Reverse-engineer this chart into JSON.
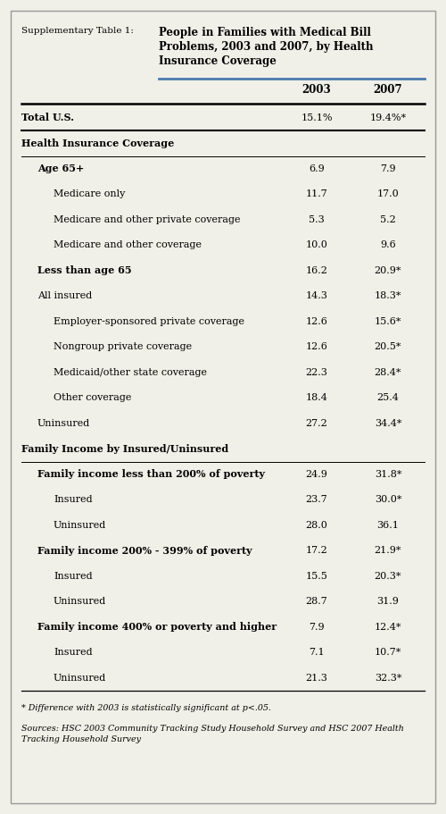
{
  "title_label": "Supplementary Table 1:",
  "title_main": "People in Families with Medical Bill\nProblems, 2003 and 2007, by Health\nInsurance Coverage",
  "col_headers": [
    "2003",
    "2007"
  ],
  "rows": [
    {
      "label": "Total U.S.",
      "val2003": "15.1%",
      "val2007": "19.4%*",
      "indent": 0,
      "bold": true,
      "is_section_header": false
    },
    {
      "label": "Health Insurance Coverage",
      "val2003": "",
      "val2007": "",
      "indent": 0,
      "bold": true,
      "is_section_header": true
    },
    {
      "label": "Age 65+",
      "val2003": "6.9",
      "val2007": "7.9",
      "indent": 1,
      "bold": true,
      "is_section_header": false
    },
    {
      "label": "Medicare only",
      "val2003": "11.7",
      "val2007": "17.0",
      "indent": 2,
      "bold": false,
      "is_section_header": false
    },
    {
      "label": "Medicare and other private coverage",
      "val2003": "5.3",
      "val2007": "5.2",
      "indent": 2,
      "bold": false,
      "is_section_header": false
    },
    {
      "label": "Medicare and other coverage",
      "val2003": "10.0",
      "val2007": "9.6",
      "indent": 2,
      "bold": false,
      "is_section_header": false
    },
    {
      "label": "Less than age 65",
      "val2003": "16.2",
      "val2007": "20.9*",
      "indent": 1,
      "bold": true,
      "is_section_header": false
    },
    {
      "label": "All insured",
      "val2003": "14.3",
      "val2007": "18.3*",
      "indent": 1,
      "bold": false,
      "is_section_header": false
    },
    {
      "label": "Employer-sponsored private coverage",
      "val2003": "12.6",
      "val2007": "15.6*",
      "indent": 2,
      "bold": false,
      "is_section_header": false
    },
    {
      "label": "Nongroup private coverage",
      "val2003": "12.6",
      "val2007": "20.5*",
      "indent": 2,
      "bold": false,
      "is_section_header": false
    },
    {
      "label": "Medicaid/other state coverage",
      "val2003": "22.3",
      "val2007": "28.4*",
      "indent": 2,
      "bold": false,
      "is_section_header": false
    },
    {
      "label": "Other coverage",
      "val2003": "18.4",
      "val2007": "25.4",
      "indent": 2,
      "bold": false,
      "is_section_header": false
    },
    {
      "label": "Uninsured",
      "val2003": "27.2",
      "val2007": "34.4*",
      "indent": 1,
      "bold": false,
      "is_section_header": false
    },
    {
      "label": "Family Income by Insured/Uninsured",
      "val2003": "",
      "val2007": "",
      "indent": 0,
      "bold": true,
      "is_section_header": true
    },
    {
      "label": "Family income less than 200% of poverty",
      "val2003": "24.9",
      "val2007": "31.8*",
      "indent": 1,
      "bold": true,
      "is_section_header": false
    },
    {
      "label": "Insured",
      "val2003": "23.7",
      "val2007": "30.0*",
      "indent": 2,
      "bold": false,
      "is_section_header": false
    },
    {
      "label": "Uninsured",
      "val2003": "28.0",
      "val2007": "36.1",
      "indent": 2,
      "bold": false,
      "is_section_header": false
    },
    {
      "label": "Family income 200% - 399% of poverty",
      "val2003": "17.2",
      "val2007": "21.9*",
      "indent": 1,
      "bold": true,
      "is_section_header": false
    },
    {
      "label": "Insured",
      "val2003": "15.5",
      "val2007": "20.3*",
      "indent": 2,
      "bold": false,
      "is_section_header": false
    },
    {
      "label": "Uninsured",
      "val2003": "28.7",
      "val2007": "31.9",
      "indent": 2,
      "bold": false,
      "is_section_header": false
    },
    {
      "label": "Family income 400% or poverty and higher",
      "val2003": "7.9",
      "val2007": "12.4*",
      "indent": 1,
      "bold": true,
      "is_section_header": false
    },
    {
      "label": "Insured",
      "val2003": "7.1",
      "val2007": "10.7*",
      "indent": 2,
      "bold": false,
      "is_section_header": false
    },
    {
      "label": "Uninsured",
      "val2003": "21.3",
      "val2007": "32.3*",
      "indent": 2,
      "bold": false,
      "is_section_header": false
    }
  ],
  "footnote1": "* Difference with 2003 is statistically significant at p<.05.",
  "footnote2": "Sources: HSC 2003 Community Tracking Study Household Survey and HSC 2007 Health\nTracking Household Survey",
  "bg_color": "#f0f0e8",
  "border_color": "#999999",
  "header_line_color": "#4a7aad",
  "fig_width": 5.0,
  "fig_height": 9.11,
  "dpi": 100
}
